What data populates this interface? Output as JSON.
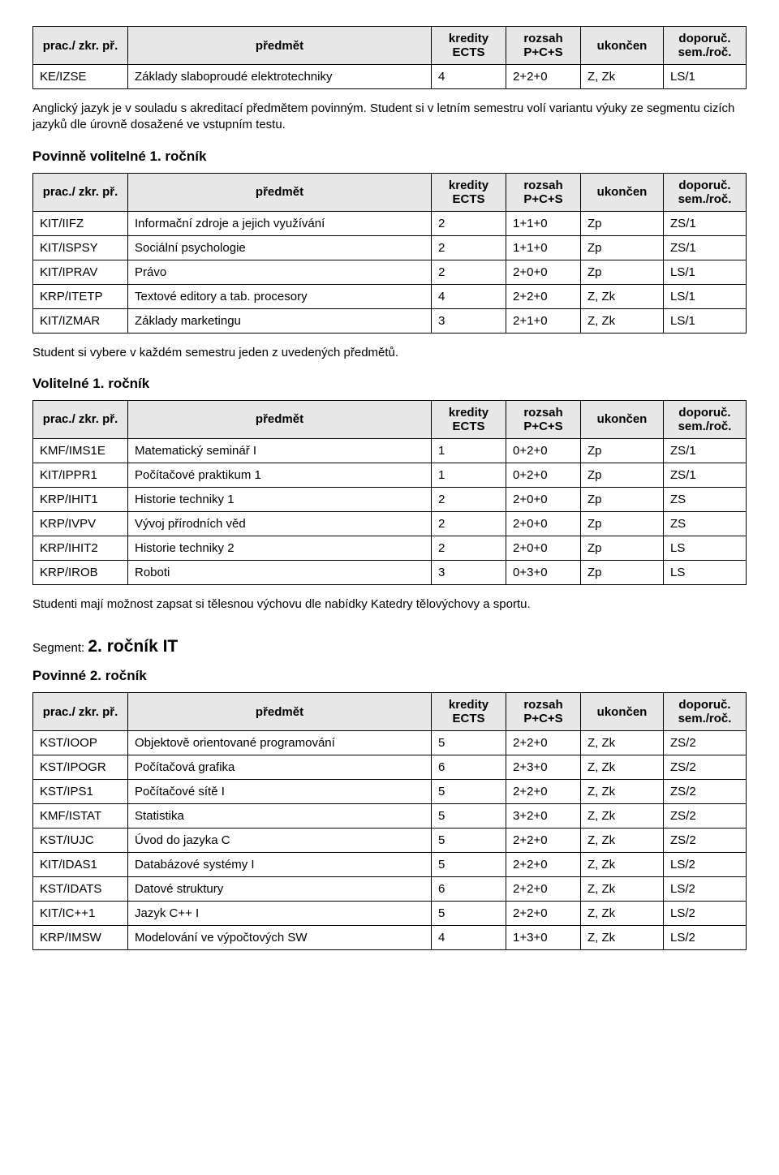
{
  "columns": {
    "prac": "prac./\nzkr. př.",
    "predmet": "předmět",
    "ects": "kredity\nECTS",
    "rozsah": "rozsah\nP+C+S",
    "ukoncen": "ukončen",
    "doporuc": "doporuč.\nsem./roč."
  },
  "table1": {
    "rows": [
      [
        "KE/IZSE",
        "Základy slaboproudé elektrotechniky",
        "4",
        "2+2+0",
        "Z, Zk",
        "LS/1"
      ]
    ]
  },
  "para1": "Anglický jazyk je v souladu s akreditací předmětem povinným. Student si v letním semestru volí variantu výuky ze segmentu cizích jazyků dle úrovně dosažené ve vstupním testu.",
  "heading2": "Povinně volitelné 1. ročník",
  "table2": {
    "rows": [
      [
        "KIT/IIFZ",
        "Informační zdroje a jejich využívání",
        "2",
        "1+1+0",
        "Zp",
        "ZS/1"
      ],
      [
        "KIT/ISPSY",
        "Sociální psychologie",
        "2",
        "1+1+0",
        "Zp",
        "ZS/1"
      ],
      [
        "KIT/IPRAV",
        "Právo",
        "2",
        "2+0+0",
        "Zp",
        "LS/1"
      ],
      [
        "KRP/ITETP",
        "Textové editory a tab. procesory",
        "4",
        "2+2+0",
        "Z, Zk",
        "LS/1"
      ],
      [
        "KIT/IZMAR",
        "Základy marketingu",
        "3",
        "2+1+0",
        "Z, Zk",
        "LS/1"
      ]
    ]
  },
  "para2": "Student si vybere v každém semestru jeden z uvedených předmětů.",
  "heading3": "Volitelné 1. ročník",
  "table3": {
    "rows": [
      [
        "KMF/IMS1E",
        "Matematický seminář I",
        "1",
        "0+2+0",
        "Zp",
        "ZS/1"
      ],
      [
        "KIT/IPPR1",
        "Počítačové praktikum 1",
        "1",
        "0+2+0",
        "Zp",
        "ZS/1"
      ],
      [
        "KRP/IHIT1",
        "Historie techniky 1",
        "2",
        "2+0+0",
        "Zp",
        "ZS"
      ],
      [
        "KRP/IVPV",
        "Vývoj přírodních věd",
        "2",
        "2+0+0",
        "Zp",
        "ZS"
      ],
      [
        "KRP/IHIT2",
        "Historie techniky 2",
        "2",
        "2+0+0",
        "Zp",
        "LS"
      ],
      [
        "KRP/IROB",
        "Roboti",
        "3",
        "0+3+0",
        "Zp",
        "LS"
      ]
    ]
  },
  "para3": "Studenti mají možnost zapsat si tělesnou výchovu dle nabídky Katedry tělovýchovy a sportu.",
  "segment_prefix": "Segment: ",
  "segment_title": "2. ročník IT",
  "heading4": "Povinné 2. ročník",
  "table4": {
    "rows": [
      [
        "KST/IOOP",
        "Objektově orientované programování",
        "5",
        "2+2+0",
        "Z, Zk",
        "ZS/2"
      ],
      [
        "KST/IPOGR",
        "Počítačová grafika",
        "6",
        "2+3+0",
        "Z, Zk",
        "ZS/2"
      ],
      [
        "KST/IPS1",
        "Počítačové sítě I",
        "5",
        "2+2+0",
        "Z, Zk",
        "ZS/2"
      ],
      [
        "KMF/ISTAT",
        "Statistika",
        "5",
        "3+2+0",
        "Z, Zk",
        "ZS/2"
      ],
      [
        "KST/IUJC",
        "Úvod do jazyka C",
        "5",
        "2+2+0",
        "Z, Zk",
        "ZS/2"
      ],
      [
        "KIT/IDAS1",
        "Databázové systémy I",
        "5",
        "2+2+0",
        "Z, Zk",
        "LS/2"
      ],
      [
        "KST/IDATS",
        "Datové struktury",
        "6",
        "2+2+0",
        "Z, Zk",
        "LS/2"
      ],
      [
        "KIT/IC++1",
        "Jazyk C++ I",
        "5",
        "2+2+0",
        "Z, Zk",
        "LS/2"
      ],
      [
        "KRP/IMSW",
        "Modelování ve výpočtových SW",
        "4",
        "1+3+0",
        "Z, Zk",
        "LS/2"
      ]
    ]
  }
}
